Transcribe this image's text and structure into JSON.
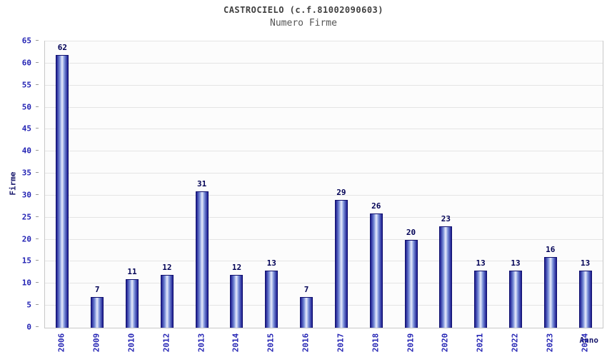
{
  "chart_data": {
    "type": "bar",
    "title": "CASTROCIELO (c.f.81002090603)",
    "subtitle": "Numero Firme",
    "xlabel": "Anno",
    "ylabel": "Firme",
    "categories": [
      "2006",
      "2009",
      "2010",
      "2012",
      "2013",
      "2014",
      "2015",
      "2016",
      "2017",
      "2018",
      "2019",
      "2020",
      "2021",
      "2022",
      "2023",
      "2024"
    ],
    "values": [
      62,
      7,
      11,
      12,
      31,
      12,
      13,
      7,
      29,
      26,
      20,
      23,
      13,
      13,
      16,
      13
    ],
    "ylim": [
      0,
      65
    ],
    "ytick_step": 5,
    "grid": true,
    "legend": "none",
    "colors": {
      "bar_edge": "#1b1b8f",
      "bar_mid": "#7a8fd9",
      "bar_center": "#e9edfc",
      "bar_border": "#10106e",
      "value_label": "#000055",
      "tick_label": "#2424b4",
      "axis_title": "#16166b",
      "grid": "#e4e4e4",
      "plot_bg": "#fcfcfc",
      "plot_border": "#c8c8c8",
      "title": "#404040",
      "subtitle": "#555555"
    }
  }
}
